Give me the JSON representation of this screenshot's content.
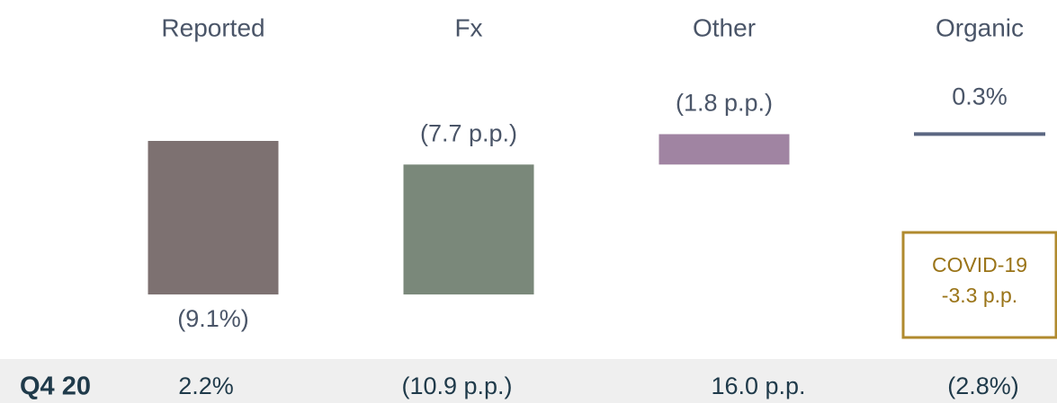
{
  "chart_data": {
    "type": "waterfall",
    "categories": [
      "Reported",
      "Fx",
      "Other",
      "Organic"
    ],
    "values": [
      -9.1,
      -7.7,
      -1.8,
      0.3
    ],
    "value_labels": [
      "(9.1%)",
      "(7.7 p.p.)",
      "(1.8 p.p.)",
      "0.3%"
    ],
    "colors": [
      "#7d7171",
      "#7a887a",
      "#a084a2",
      "#5b6782"
    ],
    "annotation": {
      "lines": [
        "COVID-19",
        "-3.3 p.p."
      ]
    },
    "comparison": {
      "label": "Q4 20",
      "cells": [
        "2.2%",
        "(10.9 p.p.)",
        "16.0 p.p.",
        "(2.8%)"
      ]
    }
  }
}
